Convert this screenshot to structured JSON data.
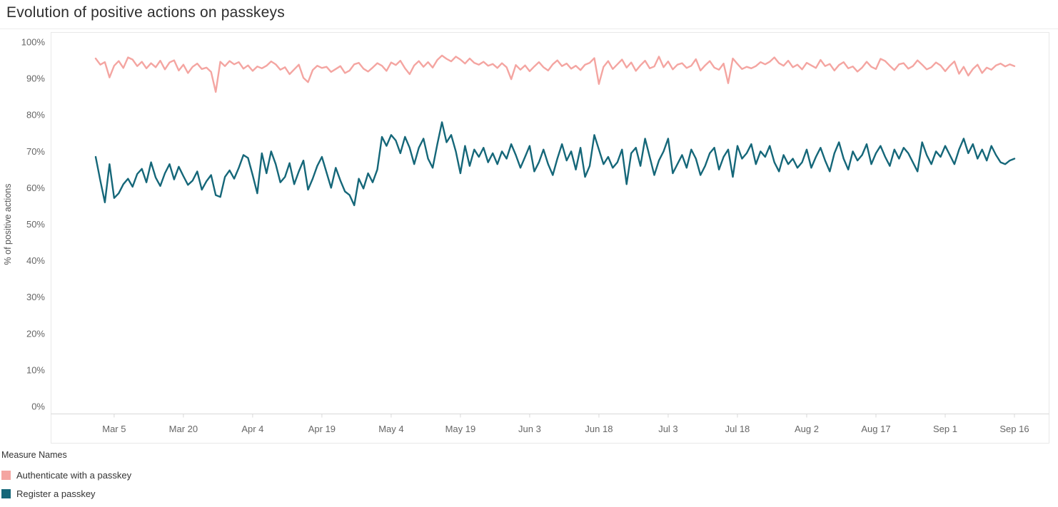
{
  "page": {
    "title": "Evolution of positive actions on passkeys"
  },
  "legend": {
    "title": "Measure Names",
    "items": [
      {
        "label": "Authenticate with a passkey",
        "color": "#F4A5A1"
      },
      {
        "label": "Register a passkey",
        "color": "#156779"
      }
    ]
  },
  "chart_data": {
    "type": "line",
    "title": "Evolution of positive actions on passkeys",
    "xlabel": "",
    "ylabel": "% of positive actions",
    "ylim": [
      0,
      100
    ],
    "ytick_step": 10,
    "ytick_format": "percent",
    "y_tick_labels": [
      "0%",
      "10%",
      "20%",
      "30%",
      "40%",
      "50%",
      "60%",
      "70%",
      "80%",
      "90%",
      "100%"
    ],
    "grid": false,
    "legend_position": "bottom-left",
    "legend_title": "Measure Names",
    "x_range": [
      "Mar 1",
      "Sep 16"
    ],
    "x_tick_labels": [
      "Mar 5",
      "Mar 20",
      "Apr 4",
      "Apr 19",
      "May 4",
      "May 19",
      "Jun 3",
      "Jun 18",
      "Jul 3",
      "Jul 18",
      "Aug 2",
      "Aug 17",
      "Sep 1",
      "Sep 16"
    ],
    "x_tick_indices": [
      4,
      19,
      34,
      49,
      64,
      79,
      94,
      109,
      124,
      139,
      154,
      169,
      184,
      199
    ],
    "series": [
      {
        "name": "Authenticate with a passkey",
        "color": "#F4A5A1",
        "values": [
          95.5,
          93.8,
          94.5,
          90.3,
          93.5,
          94.8,
          92.9,
          95.8,
          95.2,
          93.4,
          94.6,
          92.8,
          94.2,
          93.1,
          94.9,
          92.5,
          94.4,
          95.0,
          92.2,
          93.8,
          91.5,
          93.2,
          94.1,
          92.6,
          93.0,
          91.8,
          86.3,
          94.6,
          93.4,
          94.8,
          93.9,
          94.5,
          92.7,
          93.6,
          92.1,
          93.3,
          92.8,
          93.5,
          94.7,
          93.9,
          92.4,
          93.1,
          91.2,
          92.5,
          93.8,
          90.2,
          89.0,
          92.3,
          93.5,
          92.9,
          93.2,
          91.8,
          92.6,
          93.4,
          91.5,
          92.2,
          93.9,
          94.3,
          92.7,
          91.9,
          93.0,
          94.2,
          93.5,
          92.1,
          94.4,
          93.7,
          94.9,
          92.8,
          91.2,
          93.6,
          94.8,
          93.2,
          94.5,
          93.0,
          95.1,
          96.3,
          95.4,
          94.7,
          96.0,
          95.2,
          94.1,
          95.5,
          94.3,
          93.8,
          94.6,
          93.5,
          94.0,
          92.9,
          94.2,
          93.1,
          89.8,
          93.7,
          92.4,
          93.6,
          92.0,
          93.3,
          94.5,
          93.1,
          92.2,
          93.9,
          95.0,
          93.4,
          94.1,
          92.7,
          93.5,
          92.3,
          93.8,
          94.3,
          95.6,
          88.5,
          93.2,
          94.8,
          92.6,
          93.9,
          95.2,
          93.0,
          94.4,
          92.1,
          93.6,
          94.9,
          92.8,
          93.3,
          96.0,
          93.1,
          94.7,
          92.5,
          93.8,
          94.2,
          92.9,
          93.5,
          95.3,
          92.2,
          93.6,
          94.8,
          93.0,
          92.4,
          94.1,
          88.7,
          95.5,
          94.0,
          92.6,
          93.2,
          92.8,
          93.4,
          94.5,
          93.9,
          94.6,
          95.8,
          94.2,
          93.5,
          94.9,
          93.1,
          93.8,
          92.5,
          94.3,
          93.6,
          92.9,
          95.1,
          93.4,
          94.0,
          92.2,
          93.7,
          94.5,
          92.8,
          93.3,
          91.9,
          93.0,
          94.6,
          93.2,
          92.6,
          95.4,
          94.8,
          93.5,
          92.3,
          93.9,
          94.2,
          92.7,
          93.4,
          95.0,
          93.8,
          92.5,
          93.1,
          94.4,
          93.6,
          92.0,
          93.5,
          94.7,
          91.3,
          93.2,
          90.8,
          92.6,
          93.8,
          91.5,
          93.0,
          92.4,
          93.6,
          94.1,
          93.3,
          93.9,
          93.4
        ]
      },
      {
        "name": "Register a passkey",
        "color": "#156779",
        "values": [
          68.5,
          62.0,
          56.0,
          66.5,
          57.2,
          58.5,
          61.0,
          62.5,
          60.3,
          63.8,
          65.2,
          61.5,
          67.0,
          62.8,
          60.5,
          64.0,
          66.5,
          62.3,
          65.8,
          63.2,
          60.8,
          62.0,
          64.5,
          59.5,
          61.8,
          63.5,
          58.0,
          57.5,
          63.0,
          64.8,
          62.5,
          65.5,
          69.0,
          68.2,
          63.5,
          58.5,
          69.5,
          64.0,
          70.0,
          66.5,
          61.5,
          63.0,
          66.8,
          61.0,
          64.5,
          67.5,
          59.5,
          62.5,
          66.0,
          68.5,
          64.2,
          60.0,
          65.5,
          62.0,
          59.0,
          58.0,
          55.2,
          62.5,
          59.8,
          64.0,
          61.5,
          65.0,
          74.0,
          71.5,
          74.5,
          73.0,
          69.5,
          74.0,
          71.0,
          66.5,
          71.0,
          73.5,
          68.0,
          65.5,
          72.0,
          78.0,
          72.5,
          74.5,
          70.0,
          64.0,
          71.5,
          66.0,
          70.5,
          68.5,
          71.0,
          67.0,
          69.5,
          66.5,
          70.0,
          68.0,
          72.0,
          69.0,
          65.5,
          68.5,
          71.5,
          64.5,
          67.0,
          70.5,
          66.5,
          63.5,
          68.0,
          72.0,
          67.5,
          70.0,
          65.0,
          71.0,
          63.0,
          66.0,
          74.5,
          70.5,
          66.5,
          68.5,
          65.5,
          67.0,
          70.5,
          61.0,
          69.5,
          71.0,
          66.0,
          73.5,
          68.5,
          63.5,
          67.5,
          70.0,
          73.5,
          64.0,
          66.5,
          69.0,
          65.5,
          70.5,
          68.0,
          63.5,
          66.0,
          69.5,
          71.0,
          65.0,
          68.5,
          70.5,
          63.0,
          71.5,
          68.0,
          69.5,
          72.0,
          66.5,
          70.0,
          68.5,
          71.5,
          67.0,
          64.5,
          69.0,
          66.5,
          68.0,
          65.5,
          67.0,
          70.5,
          65.5,
          68.5,
          71.0,
          67.5,
          64.5,
          69.5,
          72.5,
          68.0,
          65.0,
          70.0,
          67.5,
          69.0,
          72.0,
          66.5,
          69.5,
          71.5,
          68.5,
          66.0,
          70.5,
          68.0,
          71.0,
          69.5,
          67.0,
          64.5,
          72.5,
          69.0,
          66.5,
          70.0,
          68.5,
          71.5,
          69.0,
          66.5,
          70.5,
          73.5,
          69.5,
          72.0,
          68.0,
          70.5,
          67.5,
          71.5,
          69.0,
          67.0,
          66.5,
          67.5,
          68.0
        ]
      }
    ]
  }
}
